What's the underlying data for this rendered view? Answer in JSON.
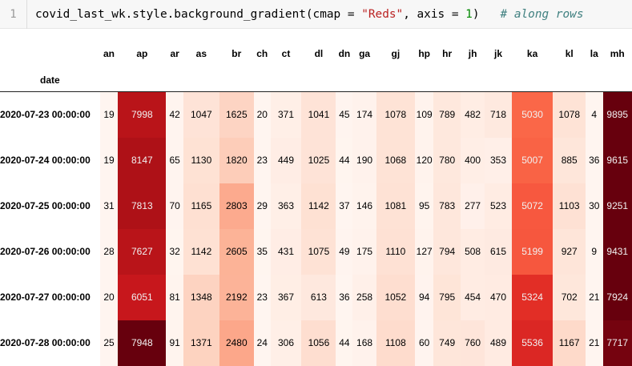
{
  "code_cell": {
    "line_number": "1",
    "code_prefix": "covid_last_wk.style.background_gradient(cmap = ",
    "code_string": "\"Reds\"",
    "code_middle": ", axis = ",
    "code_number": "1",
    "code_suffix": ")",
    "code_comment": "# along rows"
  },
  "table": {
    "index_name": "date",
    "columns": [
      "an",
      "ap",
      "ar",
      "as",
      "br",
      "ch",
      "ct",
      "dl",
      "dn",
      "ga",
      "gj",
      "hp",
      "hr",
      "jh",
      "jk",
      "ka",
      "kl",
      "la",
      "mh"
    ],
    "rows": [
      {
        "index": "2020-07-23 00:00:00",
        "values": [
          19,
          7998,
          42,
          1047,
          1625,
          20,
          371,
          1041,
          45,
          174,
          1078,
          109,
          789,
          482,
          718,
          5030,
          1078,
          4,
          9895
        ]
      },
      {
        "index": "2020-07-24 00:00:00",
        "values": [
          19,
          8147,
          65,
          1130,
          1820,
          23,
          449,
          1025,
          44,
          190,
          1068,
          120,
          780,
          400,
          353,
          5007,
          885,
          36,
          9615
        ]
      },
      {
        "index": "2020-07-25 00:00:00",
        "values": [
          31,
          7813,
          70,
          1165,
          2803,
          29,
          363,
          1142,
          37,
          146,
          1081,
          95,
          783,
          277,
          523,
          5072,
          1103,
          30,
          9251
        ]
      },
      {
        "index": "2020-07-26 00:00:00",
        "values": [
          28,
          7627,
          32,
          1142,
          2605,
          35,
          431,
          1075,
          49,
          175,
          1110,
          127,
          794,
          508,
          615,
          5199,
          927,
          9,
          9431
        ]
      },
      {
        "index": "2020-07-27 00:00:00",
        "values": [
          20,
          6051,
          81,
          1348,
          2192,
          23,
          367,
          613,
          36,
          258,
          1052,
          94,
          795,
          454,
          470,
          5324,
          702,
          21,
          7924
        ]
      },
      {
        "index": "2020-07-28 00:00:00",
        "values": [
          25,
          7948,
          91,
          1371,
          2480,
          24,
          306,
          1056,
          44,
          168,
          1108,
          60,
          749,
          760,
          489,
          5536,
          1167,
          21,
          7717
        ]
      }
    ]
  }
}
